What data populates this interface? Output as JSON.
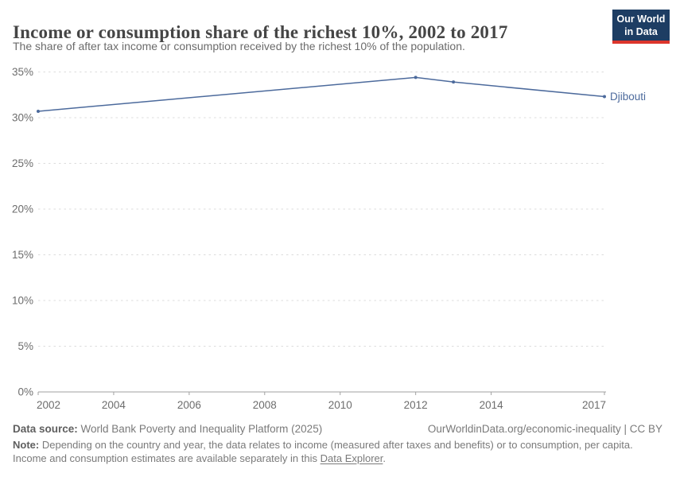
{
  "chart_data": {
    "type": "line",
    "title": "Income or consumption share of the richest 10%, 2002 to 2017",
    "subtitle": "The share of after tax income or consumption received by the richest 10% of the population.",
    "series": [
      {
        "name": "Djibouti",
        "color": "#4C6A9C",
        "points": [
          {
            "x": 2002,
            "y": 30.7
          },
          {
            "x": 2012,
            "y": 34.4
          },
          {
            "x": 2013,
            "y": 33.9
          },
          {
            "x": 2017,
            "y": 32.3
          }
        ]
      }
    ],
    "x": {
      "ticks": [
        2002,
        2004,
        2006,
        2008,
        2010,
        2012,
        2014,
        2017
      ],
      "range": [
        2002,
        2017
      ]
    },
    "y": {
      "ticks": [
        0,
        5,
        10,
        15,
        20,
        25,
        30,
        35
      ],
      "range": [
        0,
        35
      ],
      "unit": "%"
    },
    "grid": "dashed-horizontal",
    "legend": "end-of-line-label"
  },
  "logo": {
    "line1": "Our World",
    "line2": "in Data"
  },
  "footer": {
    "datasource_label": "Data source:",
    "datasource_text": "World Bank Poverty and Inequality Platform (2025)",
    "attribution": "OurWorldinData.org/economic-inequality | CC BY",
    "note_label": "Note:",
    "note_line1": "Depending on the country and year, the data relates to income (measured after taxes and benefits) or to consumption, per capita.",
    "note_line2_prefix": "Income and consumption estimates are available separately in this",
    "note_link": "Data Explorer",
    "note_suffix": "."
  },
  "colors": {
    "line": "#4C6A9C",
    "grid": "#dcdcdc",
    "axis": "#a1a1a1",
    "tick_text": "#6d6d6d"
  }
}
